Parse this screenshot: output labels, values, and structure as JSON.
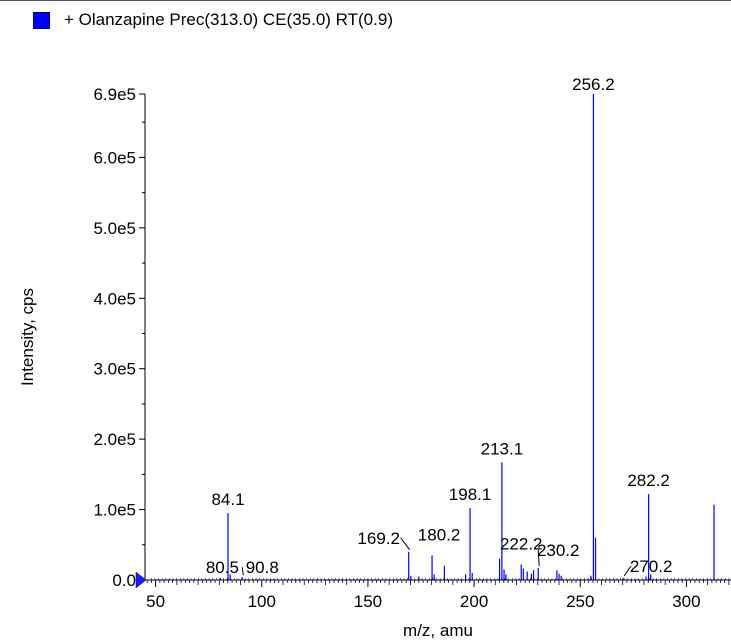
{
  "legend": {
    "label": "+ Olanzapine Prec(313.0) CE(35.0) RT(0.9)",
    "swatch_color": "#0000ff"
  },
  "chart_data": {
    "type": "bar",
    "title": "+ Olanzapine Prec(313.0) CE(35.0) RT(0.9)",
    "xlabel": "m/z, amu",
    "ylabel": "Intensity, cps",
    "xlim": [
      45,
      321
    ],
    "ylim": [
      0,
      690000
    ],
    "x_ticks": [
      50,
      100,
      150,
      200,
      250,
      300
    ],
    "x_tick_labels": [
      "50",
      "100",
      "150",
      "200",
      "250",
      "300"
    ],
    "y_ticks": [
      0,
      100000,
      200000,
      300000,
      400000,
      500000,
      600000,
      690000
    ],
    "y_tick_labels": [
      "0.0",
      "1.0e5",
      "2.0e5",
      "3.0e5",
      "4.0e5",
      "5.0e5",
      "6.0e5",
      "6.9e5"
    ],
    "color": "#0000ff",
    "peaks": [
      {
        "mz": 80.5,
        "intensity": 3000
      },
      {
        "mz": 84.1,
        "intensity": 95000
      },
      {
        "mz": 85.1,
        "intensity": 8000
      },
      {
        "mz": 90.8,
        "intensity": 4000
      },
      {
        "mz": 169.2,
        "intensity": 40000
      },
      {
        "mz": 170.2,
        "intensity": 6000
      },
      {
        "mz": 174.0,
        "intensity": 5000
      },
      {
        "mz": 180.2,
        "intensity": 35000
      },
      {
        "mz": 181.2,
        "intensity": 8000
      },
      {
        "mz": 186.0,
        "intensity": 20000
      },
      {
        "mz": 196.0,
        "intensity": 8000
      },
      {
        "mz": 198.1,
        "intensity": 102000
      },
      {
        "mz": 199.1,
        "intensity": 10000
      },
      {
        "mz": 212.0,
        "intensity": 30000
      },
      {
        "mz": 213.1,
        "intensity": 167000
      },
      {
        "mz": 214.1,
        "intensity": 15000
      },
      {
        "mz": 215.0,
        "intensity": 8000
      },
      {
        "mz": 222.2,
        "intensity": 22000
      },
      {
        "mz": 223.2,
        "intensity": 16000
      },
      {
        "mz": 225.0,
        "intensity": 12000
      },
      {
        "mz": 227.0,
        "intensity": 9000
      },
      {
        "mz": 228.0,
        "intensity": 14000
      },
      {
        "mz": 230.2,
        "intensity": 17000
      },
      {
        "mz": 239.0,
        "intensity": 14000
      },
      {
        "mz": 240.0,
        "intensity": 9000
      },
      {
        "mz": 241.0,
        "intensity": 6000
      },
      {
        "mz": 255.0,
        "intensity": 6000
      },
      {
        "mz": 256.2,
        "intensity": 690000
      },
      {
        "mz": 257.2,
        "intensity": 60000
      },
      {
        "mz": 270.2,
        "intensity": 3000
      },
      {
        "mz": 281.0,
        "intensity": 5000
      },
      {
        "mz": 282.2,
        "intensity": 122000
      },
      {
        "mz": 283.2,
        "intensity": 8000
      },
      {
        "mz": 313.0,
        "intensity": 107000
      }
    ],
    "peak_labels": [
      {
        "mz": 84.1,
        "text": "84.1",
        "intensity": 95000,
        "leader": false
      },
      {
        "mz": 80.5,
        "text": "80.5",
        "intensity": 3000,
        "leader": false
      },
      {
        "mz": 90.8,
        "text": "90.8",
        "intensity": 4000,
        "leader": true
      },
      {
        "mz": 169.2,
        "text": "169.2",
        "intensity": 40000,
        "leader": true
      },
      {
        "mz": 180.2,
        "text": "180.2",
        "intensity": 35000,
        "leader": false
      },
      {
        "mz": 198.1,
        "text": "198.1",
        "intensity": 102000,
        "leader": false
      },
      {
        "mz": 213.1,
        "text": "213.1",
        "intensity": 167000,
        "leader": false
      },
      {
        "mz": 222.2,
        "text": "222.2",
        "intensity": 22000,
        "leader": false
      },
      {
        "mz": 230.2,
        "text": "230.2",
        "intensity": 17000,
        "leader": true
      },
      {
        "mz": 256.2,
        "text": "256.2",
        "intensity": 690000,
        "leader": false
      },
      {
        "mz": 270.2,
        "text": "270.2",
        "intensity": 3000,
        "leader": true
      },
      {
        "mz": 282.2,
        "text": "282.2",
        "intensity": 122000,
        "leader": false
      }
    ]
  }
}
